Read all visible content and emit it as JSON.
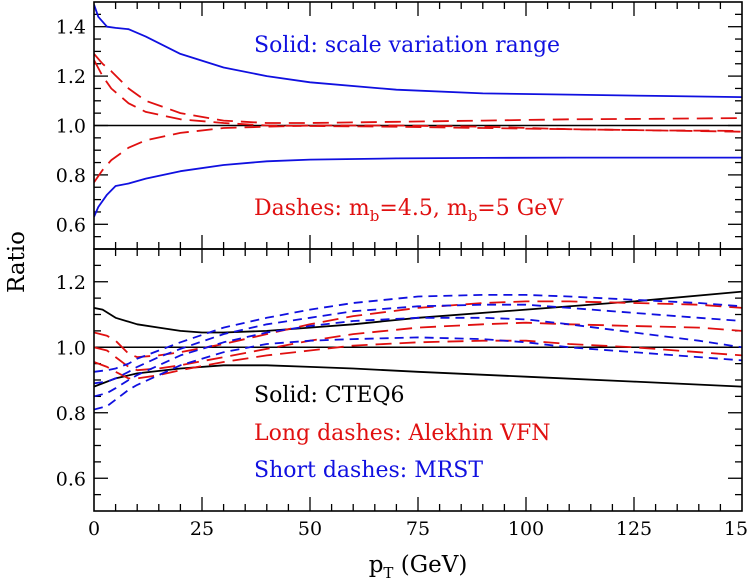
{
  "colors": {
    "axis": "#000000",
    "blue": "#1010e0",
    "red": "#e01010",
    "black": "#000000"
  },
  "shared": {
    "xlabel_main": "p",
    "xlabel_sub": "T",
    "xlabel_unit": " (GeV)",
    "ylabel": "Ratio",
    "xlim": [
      0,
      150
    ],
    "xticks": [
      0,
      25,
      50,
      75,
      100,
      125,
      150
    ]
  },
  "chart_data": [
    {
      "type": "line",
      "panel": "top",
      "ylim": [
        0.5,
        1.5
      ],
      "yticks": [
        0.6,
        0.8,
        1.0,
        1.2,
        1.4
      ],
      "annotations": {
        "solid": "Solid: scale variation range",
        "dashes_prefix": "Dashes: m",
        "dashes_sub1": "b",
        "dashes_mid": "=4.5, m",
        "dashes_sub2": "b",
        "dashes_suffix": "=5 GeV"
      },
      "series": [
        {
          "style": "solid",
          "color": "blue",
          "x": [
            0,
            1,
            3,
            5,
            8,
            12,
            20,
            30,
            40,
            50,
            70,
            90,
            110,
            130,
            150
          ],
          "y": [
            1.49,
            1.44,
            1.4,
            1.395,
            1.39,
            1.36,
            1.29,
            1.235,
            1.2,
            1.175,
            1.145,
            1.13,
            1.125,
            1.12,
            1.115
          ]
        },
        {
          "style": "solid",
          "color": "blue",
          "x": [
            0,
            1,
            3,
            5,
            8,
            12,
            20,
            30,
            40,
            50,
            70,
            90,
            110,
            130,
            150
          ],
          "y": [
            0.63,
            0.67,
            0.72,
            0.755,
            0.765,
            0.785,
            0.815,
            0.84,
            0.855,
            0.862,
            0.867,
            0.869,
            0.87,
            0.87,
            0.87
          ]
        },
        {
          "style": "long-dash",
          "color": "red",
          "x": [
            0,
            2,
            4,
            8,
            12,
            20,
            30,
            40,
            50,
            70,
            90,
            110,
            130,
            150
          ],
          "y": [
            1.29,
            1.25,
            1.22,
            1.15,
            1.1,
            1.05,
            1.02,
            1.01,
            1.01,
            1.015,
            1.02,
            1.025,
            1.027,
            1.03
          ]
        },
        {
          "style": "long-dash",
          "color": "red",
          "x": [
            0,
            2,
            4,
            8,
            12,
            20,
            30,
            40,
            50,
            70,
            90,
            110,
            130,
            150
          ],
          "y": [
            1.265,
            1.2,
            1.15,
            1.09,
            1.055,
            1.025,
            1.01,
            1.0,
            0.998,
            0.995,
            0.99,
            0.985,
            0.98,
            0.978
          ]
        },
        {
          "style": "long-dash",
          "color": "red",
          "x": [
            0,
            2,
            4,
            8,
            12,
            20,
            30,
            40,
            50,
            70,
            90,
            110,
            130,
            150
          ],
          "y": [
            0.77,
            0.82,
            0.86,
            0.91,
            0.94,
            0.97,
            0.99,
            0.995,
            1.0,
            1.0,
            0.995,
            0.985,
            0.98,
            0.975
          ]
        }
      ]
    },
    {
      "type": "line",
      "panel": "bottom",
      "ylim": [
        0.5,
        1.3
      ],
      "yticks": [
        0.6,
        0.8,
        1.0,
        1.2
      ],
      "annotations": {
        "solid": "Solid: CTEQ6",
        "long": "Long dashes: Alekhin VFN",
        "short": "Short dashes: MRST"
      },
      "series": [
        {
          "style": "solid",
          "color": "black",
          "x": [
            0,
            2,
            5,
            10,
            15,
            20,
            25,
            30,
            40,
            50,
            60,
            75,
            100,
            125,
            150
          ],
          "y": [
            1.12,
            1.115,
            1.09,
            1.07,
            1.06,
            1.05,
            1.045,
            1.045,
            1.05,
            1.06,
            1.07,
            1.09,
            1.115,
            1.14,
            1.17
          ]
        },
        {
          "style": "solid",
          "color": "black",
          "x": [
            0,
            5,
            10,
            20,
            30,
            40,
            50,
            60,
            75,
            100,
            125,
            150
          ],
          "y": [
            0.88,
            0.905,
            0.92,
            0.935,
            0.945,
            0.945,
            0.94,
            0.935,
            0.925,
            0.91,
            0.895,
            0.88
          ]
        },
        {
          "style": "long-dash",
          "color": "red",
          "x": [
            0,
            3,
            5,
            8,
            10,
            15,
            20,
            30,
            40,
            50,
            60,
            75,
            90,
            100,
            110,
            125,
            140,
            150
          ],
          "y": [
            1.045,
            1.035,
            1.02,
            0.98,
            0.97,
            0.975,
            0.985,
            1.01,
            1.04,
            1.07,
            1.095,
            1.12,
            1.135,
            1.14,
            1.14,
            1.135,
            1.13,
            1.12
          ]
        },
        {
          "style": "long-dash",
          "color": "red",
          "x": [
            0,
            3,
            5,
            8,
            10,
            15,
            20,
            30,
            40,
            50,
            60,
            75,
            90,
            100,
            110,
            125,
            140,
            150
          ],
          "y": [
            1.0,
            0.99,
            0.97,
            0.94,
            0.93,
            0.935,
            0.945,
            0.97,
            0.995,
            1.02,
            1.04,
            1.06,
            1.07,
            1.075,
            1.07,
            1.065,
            1.06,
            1.05
          ]
        },
        {
          "style": "long-dash",
          "color": "red",
          "x": [
            0,
            3,
            5,
            8,
            10,
            15,
            20,
            30,
            40,
            50,
            60,
            75,
            90,
            100,
            110,
            125,
            140,
            150
          ],
          "y": [
            0.955,
            0.94,
            0.925,
            0.905,
            0.905,
            0.915,
            0.93,
            0.955,
            0.975,
            0.99,
            1.005,
            1.015,
            1.02,
            1.02,
            1.01,
            1.0,
            0.985,
            0.975
          ]
        },
        {
          "style": "short-dash",
          "color": "blue",
          "x": [
            0,
            3,
            5,
            8,
            10,
            15,
            20,
            30,
            40,
            50,
            60,
            75,
            90,
            100,
            110,
            125,
            140,
            150
          ],
          "y": [
            0.925,
            0.93,
            0.935,
            0.95,
            0.965,
            0.99,
            1.015,
            1.06,
            1.09,
            1.115,
            1.135,
            1.155,
            1.16,
            1.16,
            1.155,
            1.145,
            1.135,
            1.125
          ]
        },
        {
          "style": "short-dash",
          "color": "blue",
          "x": [
            0,
            3,
            5,
            8,
            10,
            15,
            20,
            30,
            40,
            50,
            60,
            75,
            90,
            100,
            110,
            125,
            140,
            150
          ],
          "y": [
            0.89,
            0.895,
            0.905,
            0.925,
            0.94,
            0.97,
            0.995,
            1.04,
            1.07,
            1.09,
            1.11,
            1.125,
            1.13,
            1.13,
            1.12,
            1.105,
            1.09,
            1.08
          ]
        },
        {
          "style": "short-dash",
          "color": "blue",
          "x": [
            0,
            3,
            5,
            8,
            10,
            15,
            20,
            30,
            40,
            50,
            60,
            75,
            90,
            100,
            110,
            125,
            140,
            150
          ],
          "y": [
            0.85,
            0.86,
            0.875,
            0.9,
            0.915,
            0.945,
            0.975,
            1.015,
            1.045,
            1.065,
            1.08,
            1.09,
            1.09,
            1.085,
            1.07,
            1.045,
            1.02,
            1.0
          ]
        },
        {
          "style": "short-dash",
          "color": "blue",
          "x": [
            0,
            3,
            5,
            8,
            10,
            15,
            20,
            30,
            40,
            50,
            60,
            75,
            90,
            100,
            110,
            125,
            140,
            150
          ],
          "y": [
            0.81,
            0.82,
            0.84,
            0.87,
            0.885,
            0.915,
            0.945,
            0.985,
            1.01,
            1.02,
            1.025,
            1.03,
            1.025,
            1.015,
            1.0,
            0.985,
            0.97,
            0.96
          ]
        }
      ]
    }
  ]
}
